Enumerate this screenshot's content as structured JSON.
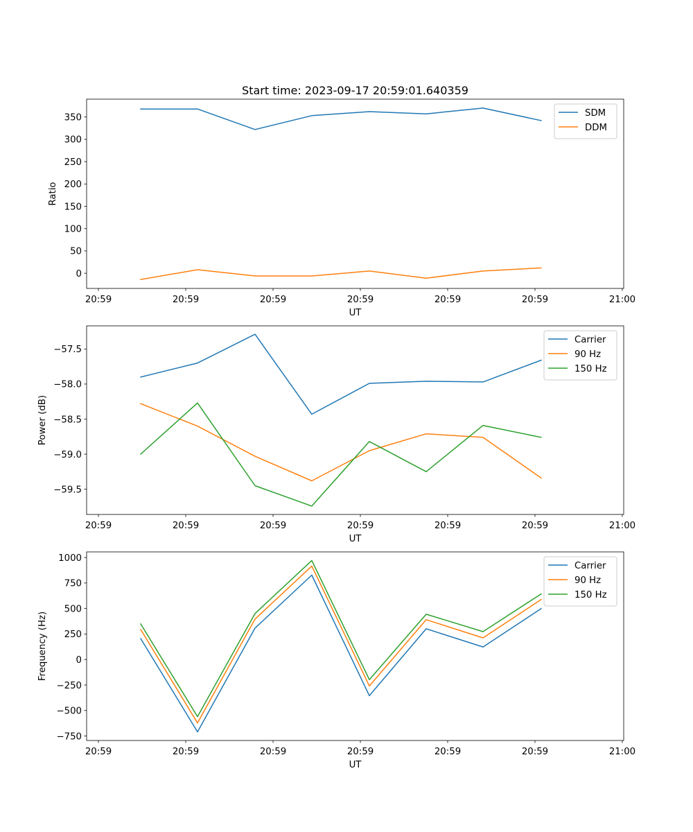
{
  "figure_title": "Start time: 2023-09-17 20:59:01.640359",
  "chart_data": [
    {
      "type": "line",
      "title": "Start time: 2023-09-17 20:59:01.640359",
      "xlabel": "UT",
      "ylabel": "Ratio",
      "x": [
        0.484,
        1.135,
        1.794,
        2.444,
        3.103,
        3.754,
        4.405,
        5.071
      ],
      "xlim": [
        -0.135,
        6.016
      ],
      "x_ticks": [
        0,
        1,
        2,
        3,
        4,
        5,
        6
      ],
      "x_tick_labels": [
        "20:59",
        "20:59",
        "20:59",
        "20:59",
        "20:59",
        "20:59",
        "21:00"
      ],
      "ylim": [
        -34,
        390
      ],
      "y_ticks": [
        0,
        50,
        100,
        150,
        200,
        250,
        300,
        350
      ],
      "y_tick_labels": [
        "0",
        "50",
        "100",
        "150",
        "200",
        "250",
        "300",
        "350"
      ],
      "grid": false,
      "legend_position": "top-right",
      "series": [
        {
          "name": "SDM",
          "color": "#1f77b4",
          "values": [
            368,
            368,
            322,
            353,
            362,
            357,
            370,
            342
          ]
        },
        {
          "name": "DDM",
          "color": "#ff7f0e",
          "values": [
            -14,
            8,
            -6,
            -6,
            5,
            -11,
            5,
            12
          ]
        }
      ]
    },
    {
      "type": "line",
      "title": "",
      "xlabel": "UT",
      "ylabel": "Power (dB)",
      "x": [
        0.484,
        1.135,
        1.794,
        2.444,
        3.103,
        3.754,
        4.405,
        5.071
      ],
      "xlim": [
        -0.135,
        6.016
      ],
      "x_ticks": [
        0,
        1,
        2,
        3,
        4,
        5,
        6
      ],
      "x_tick_labels": [
        "20:59",
        "20:59",
        "20:59",
        "20:59",
        "20:59",
        "20:59",
        "21:00"
      ],
      "ylim": [
        -59.86,
        -57.17
      ],
      "y_ticks": [
        -57.5,
        -58.0,
        -58.5,
        -59.0,
        -59.5
      ],
      "y_tick_labels": [
        "−57.5",
        "−58.0",
        "−58.5",
        "−59.0",
        "−59.5"
      ],
      "grid": false,
      "legend_position": "top-right",
      "series": [
        {
          "name": "Carrier",
          "color": "#1f77b4",
          "values": [
            -57.9,
            -57.7,
            -57.29,
            -58.43,
            -57.99,
            -57.96,
            -57.97,
            -57.66
          ]
        },
        {
          "name": "90 Hz",
          "color": "#ff7f0e",
          "values": [
            -58.28,
            -58.6,
            -59.03,
            -59.38,
            -58.95,
            -58.71,
            -58.76,
            -59.34
          ]
        },
        {
          "name": "150 Hz",
          "color": "#2ca02c",
          "values": [
            -59.0,
            -58.27,
            -59.45,
            -59.74,
            -58.82,
            -59.25,
            -58.59,
            -58.76
          ]
        }
      ]
    },
    {
      "type": "line",
      "title": "",
      "xlabel": "UT",
      "ylabel": "Frequency (Hz)",
      "x": [
        0.484,
        1.135,
        1.794,
        2.444,
        3.103,
        3.754,
        4.405,
        5.071
      ],
      "xlim": [
        -0.135,
        6.016
      ],
      "x_ticks": [
        0,
        1,
        2,
        3,
        4,
        5,
        6
      ],
      "x_tick_labels": [
        "20:59",
        "20:59",
        "20:59",
        "20:59",
        "20:59",
        "20:59",
        "21:00"
      ],
      "ylim": [
        -794,
        1055
      ],
      "y_ticks": [
        -750,
        -500,
        -250,
        0,
        250,
        500,
        750,
        1000
      ],
      "y_tick_labels": [
        "−750",
        "−500",
        "−250",
        "0",
        "250",
        "500",
        "750",
        "1000"
      ],
      "grid": false,
      "legend_position": "top-right",
      "series": [
        {
          "name": "Carrier",
          "color": "#1f77b4",
          "values": [
            205,
            -710,
            308,
            827,
            -355,
            301,
            123,
            499
          ]
        },
        {
          "name": "90 Hz",
          "color": "#ff7f0e",
          "values": [
            294,
            -622,
            396,
            916,
            -260,
            390,
            212,
            588
          ]
        },
        {
          "name": "150 Hz",
          "color": "#2ca02c",
          "values": [
            349,
            -560,
            451,
            971,
            -198,
            444,
            273,
            643
          ]
        }
      ]
    }
  ]
}
